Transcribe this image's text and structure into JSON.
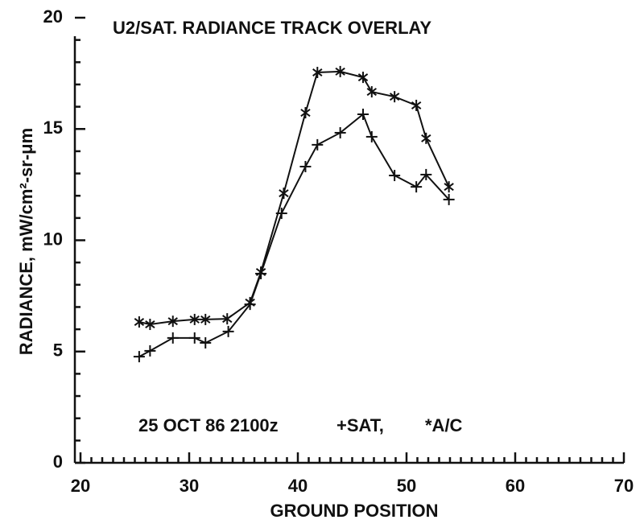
{
  "chart_data": {
    "type": "line",
    "title": "U2/SAT. RADIANCE TRACK OVERLAY",
    "annotation": "25 OCT 86  2100z",
    "x_label": "GROUND POSITION",
    "y_label": "RADIANCE, mW/cm²-sr-μm",
    "xlim": [
      20,
      70
    ],
    "xticks": [
      20,
      30,
      40,
      50,
      60,
      70
    ],
    "ylim": [
      0,
      20
    ],
    "yticks": [
      0,
      5,
      10,
      15,
      20
    ],
    "series": [
      {
        "name": "+SAT,",
        "marker": "+",
        "color": "#111",
        "x": [
          25.4,
          26.4,
          28.5,
          30.5,
          31.5,
          33.6,
          35.6,
          36.6,
          38.5,
          40.7,
          41.8,
          43.9,
          46.0,
          46.8,
          48.9,
          50.9,
          51.8,
          53.9
        ],
        "values": [
          4.77,
          5.03,
          5.61,
          5.61,
          5.39,
          5.9,
          7.12,
          8.5,
          11.21,
          13.31,
          14.29,
          14.83,
          15.66,
          14.65,
          12.91,
          12.4,
          12.95,
          11.83
        ]
      },
      {
        "name": "*A/C",
        "marker": "*",
        "color": "#111",
        "x": [
          25.4,
          26.4,
          28.5,
          30.5,
          31.5,
          33.5,
          35.6,
          36.6,
          38.7,
          40.7,
          41.8,
          43.9,
          46.0,
          46.8,
          48.9,
          50.9,
          51.8,
          53.9
        ],
        "values": [
          6.33,
          6.22,
          6.36,
          6.44,
          6.44,
          6.47,
          7.2,
          8.57,
          12.11,
          15.73,
          17.54,
          17.58,
          17.32,
          16.67,
          16.45,
          16.06,
          14.58,
          12.4
        ]
      }
    ]
  }
}
